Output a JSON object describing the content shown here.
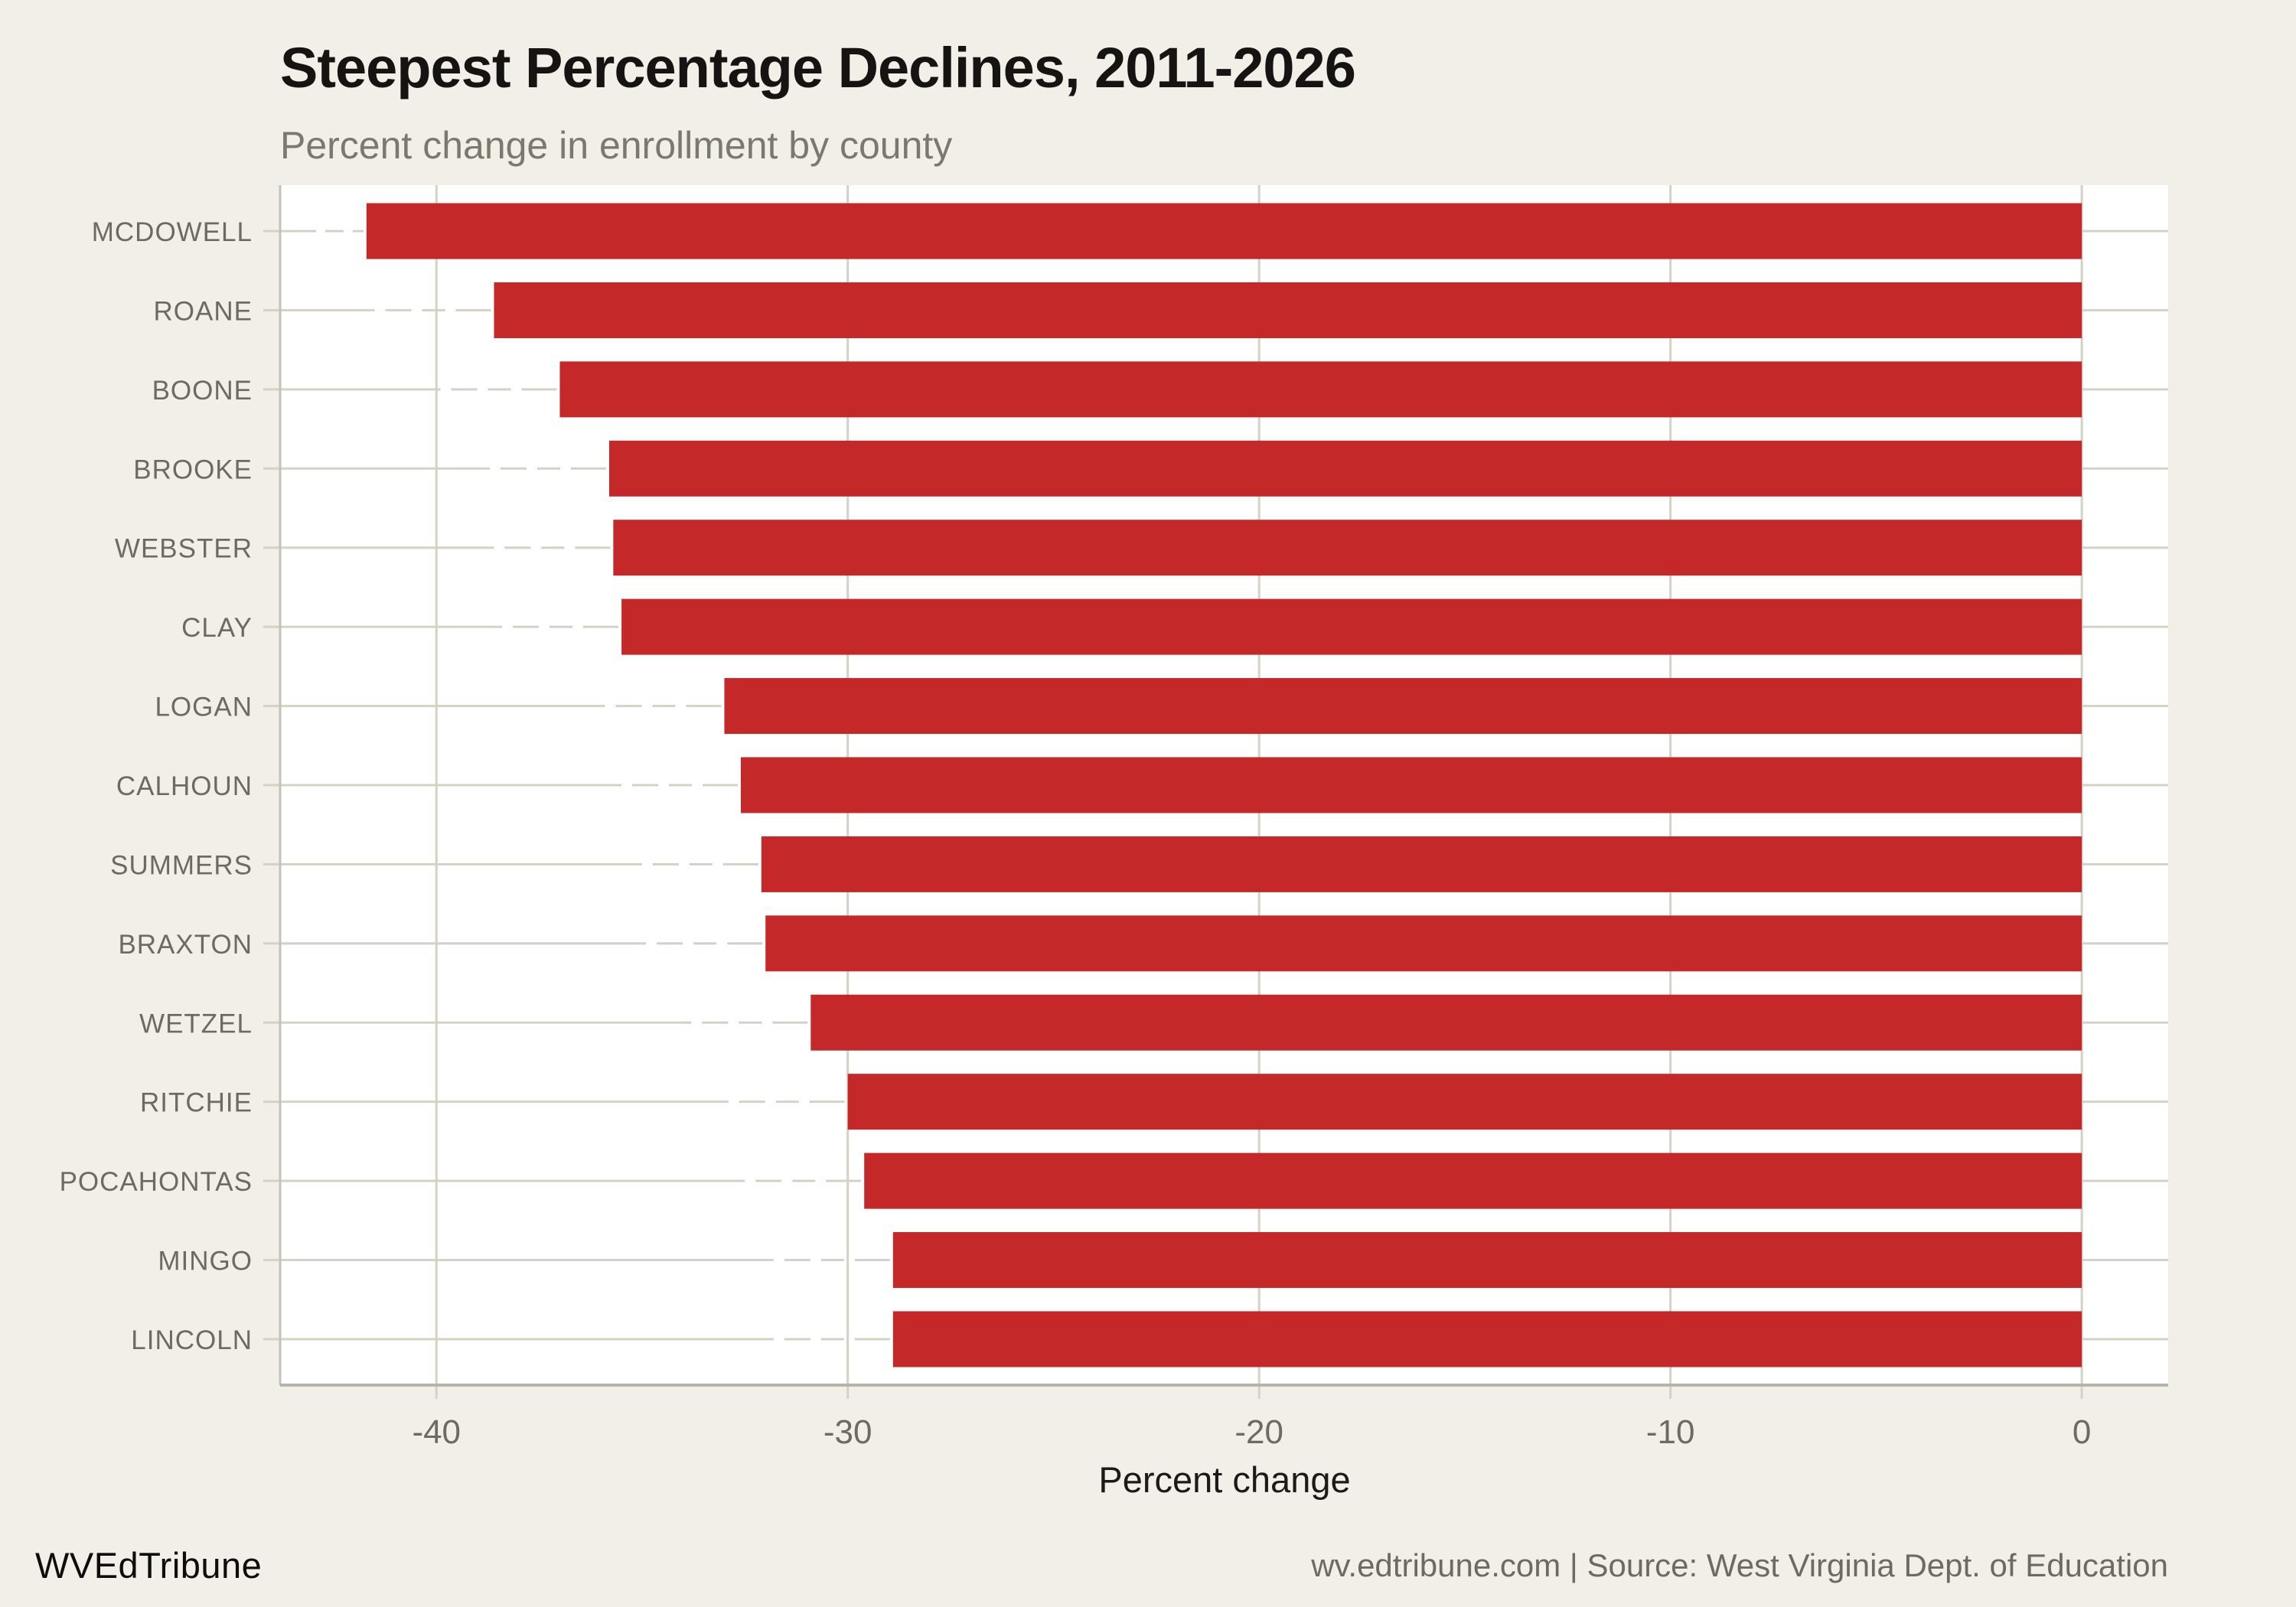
{
  "page": {
    "background_color": "#f2efe9",
    "panel_color": "#ffffff"
  },
  "chart_data": {
    "type": "bar",
    "orientation": "horizontal",
    "title": "Steepest Percentage Declines, 2011-2026",
    "subtitle": "Percent change in enrollment by county",
    "xlabel": "Percent change",
    "categories": [
      "MCDOWELL",
      "ROANE",
      "BOONE",
      "BROOKE",
      "WEBSTER",
      "CLAY",
      "LOGAN",
      "CALHOUN",
      "SUMMERS",
      "BRAXTON",
      "WETZEL",
      "RITCHIE",
      "POCAHONTAS",
      "MINGO",
      "LINCOLN"
    ],
    "values": [
      -41.7,
      -38.6,
      -37.0,
      -35.8,
      -35.7,
      -35.5,
      -33.0,
      -32.6,
      -32.1,
      -32.0,
      -30.9,
      -30.0,
      -29.6,
      -28.9,
      -28.9
    ],
    "xticks": [
      -40,
      -30,
      -20,
      -10,
      0
    ],
    "xlim": [
      -43.8,
      2.1
    ],
    "grid": "on",
    "legend": "none",
    "bar_color": "#c42828",
    "grid_color": "#d5d1c7",
    "axis_line_color": "#b7b3a9",
    "panel_border_color": "#c6c2b8",
    "tick_label_color": "#6d6a62",
    "category_label_color": "#6d6a62"
  },
  "footer": {
    "brand": "WVEdTribune",
    "source": "wv.edtribune.com | Source: West Virginia Dept. of Education"
  }
}
